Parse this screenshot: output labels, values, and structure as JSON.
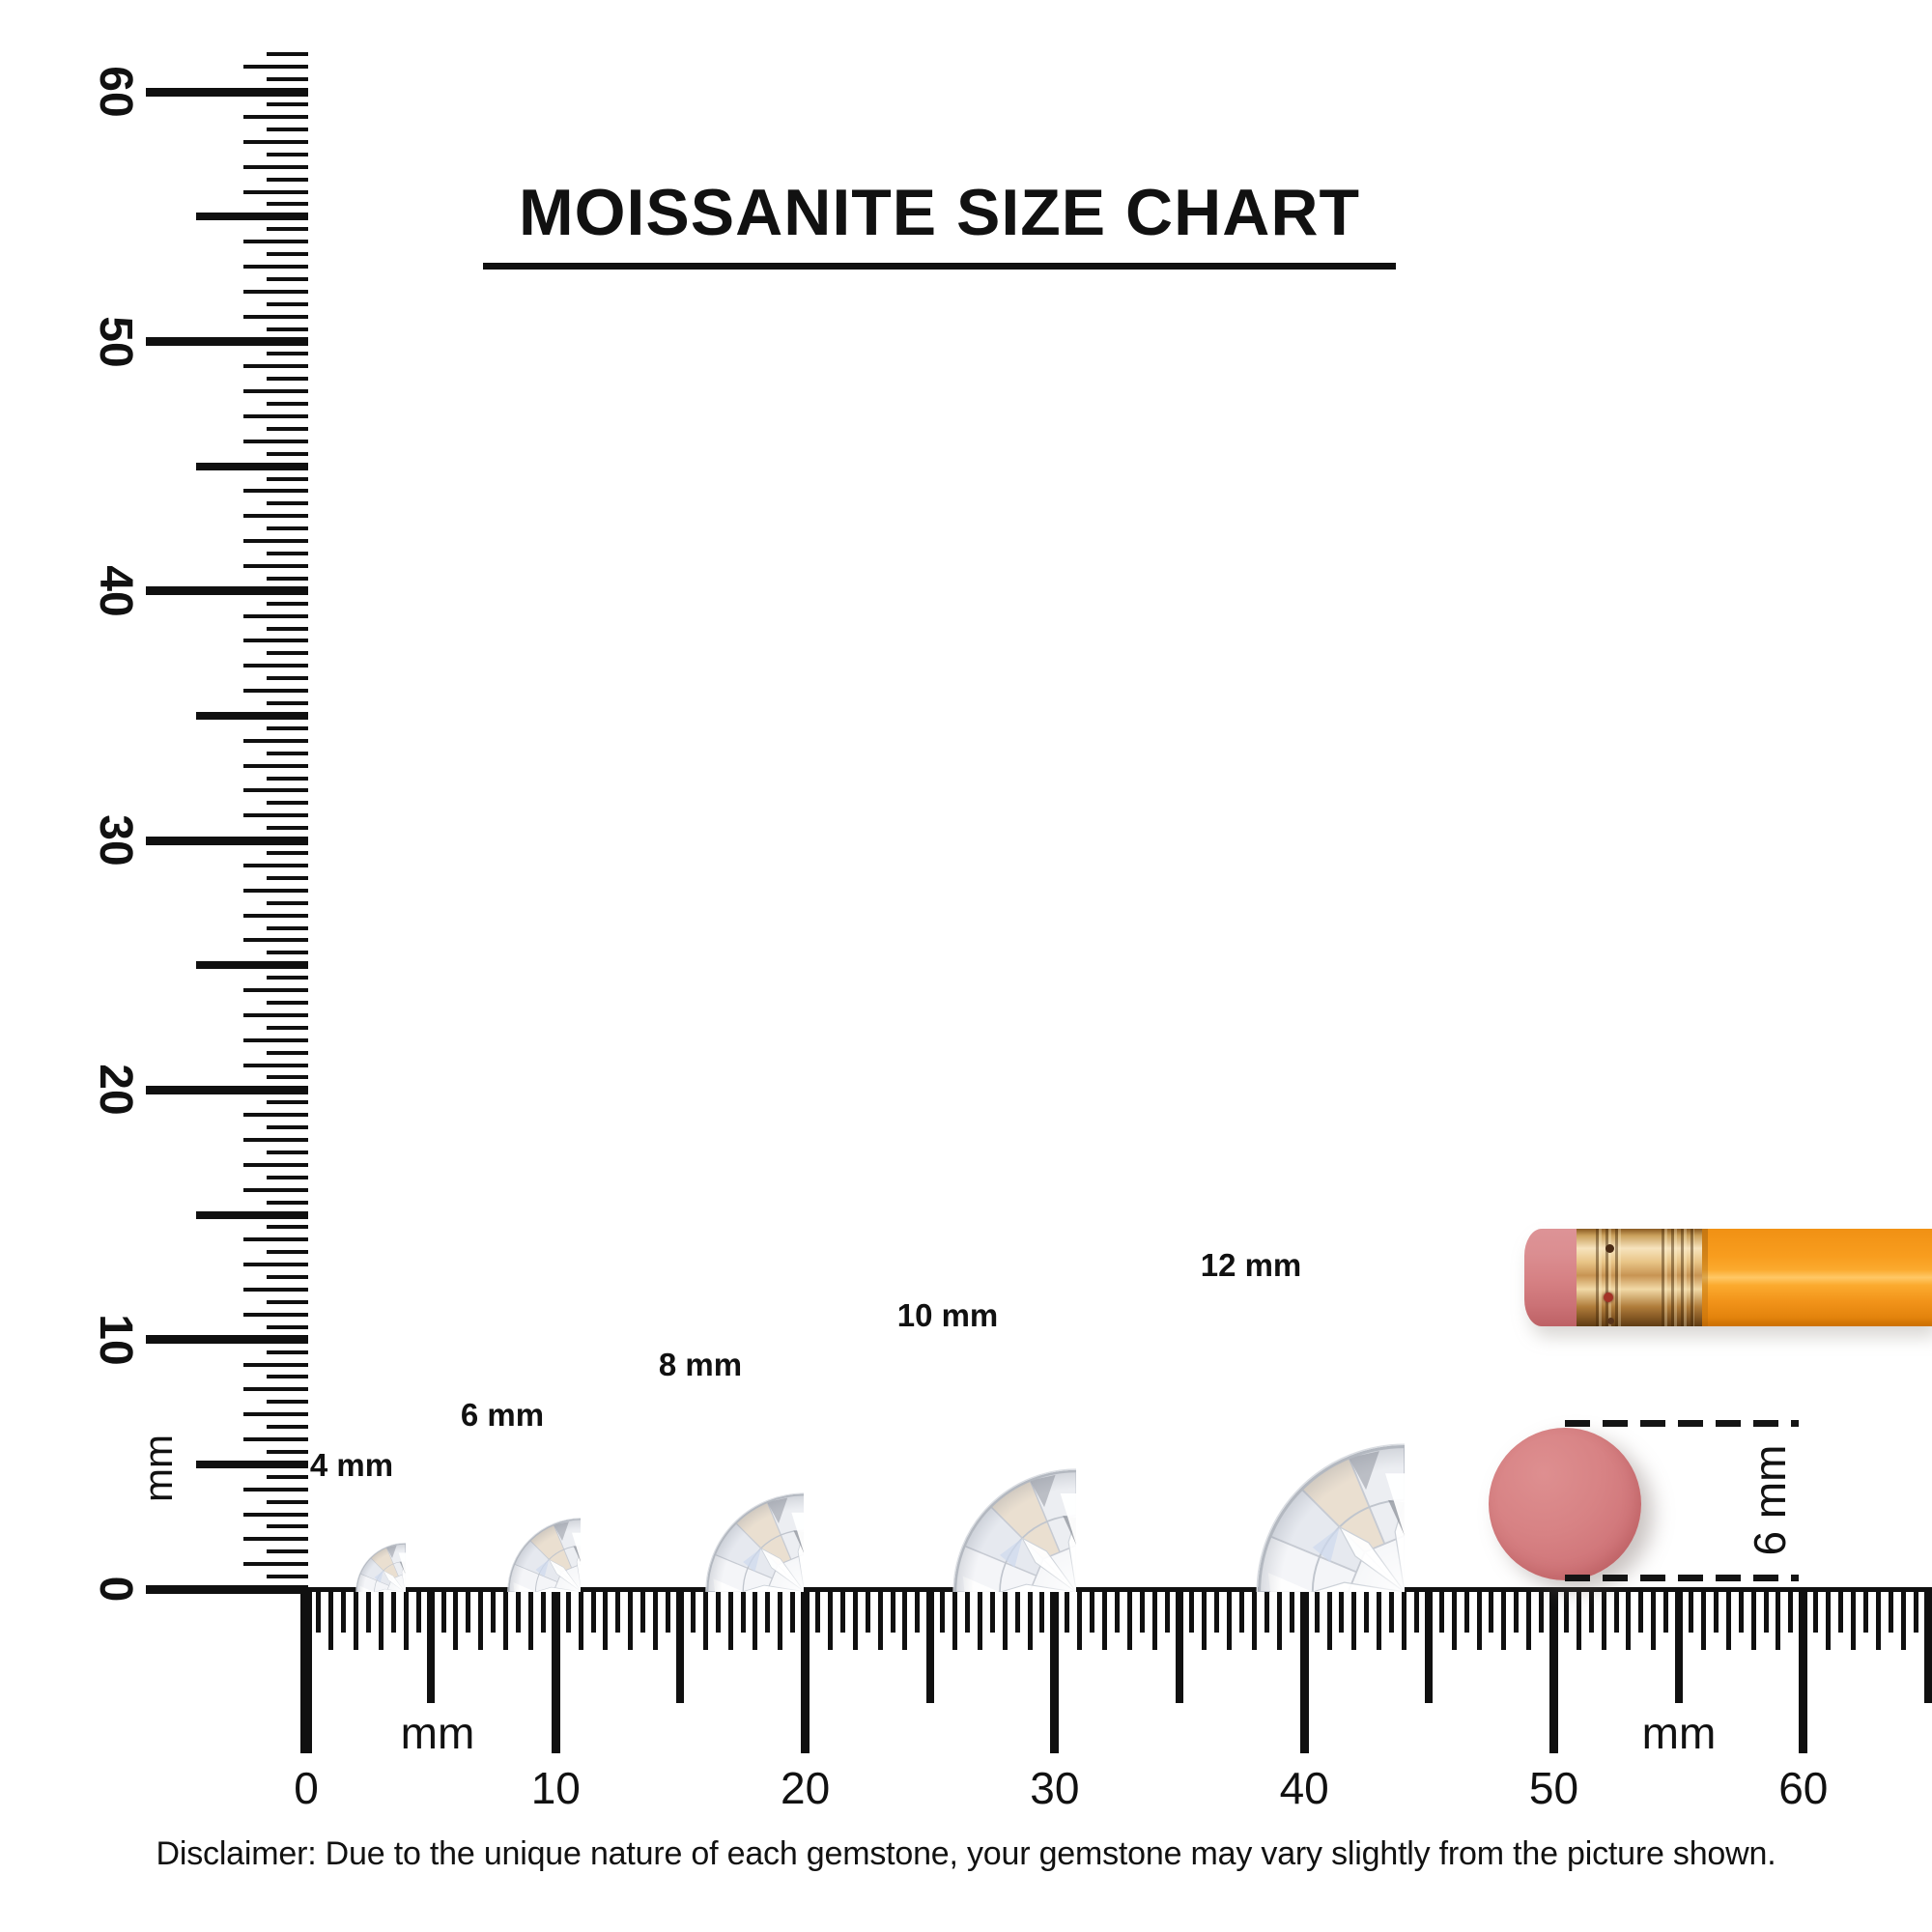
{
  "title": {
    "text": "MOISSANITE SIZE CHART"
  },
  "vertical_ruler": {
    "unit": "mm",
    "tick_labels": [
      "60",
      "50",
      "40",
      "30",
      "20",
      "10",
      "0"
    ],
    "label_values": [
      60,
      50,
      40,
      30,
      20,
      10,
      0
    ],
    "min": 0,
    "max": 60
  },
  "horizontal_ruler": {
    "unit_left": "mm",
    "unit_right": "mm",
    "tick_labels": [
      "0",
      "10",
      "20",
      "30",
      "40",
      "50",
      "60"
    ],
    "label_values": [
      0,
      10,
      20,
      30,
      40,
      50,
      60
    ],
    "min": 0,
    "max": 60
  },
  "gems": [
    {
      "label": "4 mm",
      "size_mm": 4
    },
    {
      "label": "6 mm",
      "size_mm": 6
    },
    {
      "label": "8 mm",
      "size_mm": 8
    },
    {
      "label": "10 mm",
      "size_mm": 10
    },
    {
      "label": "12 mm",
      "size_mm": 12
    }
  ],
  "eraser_measure": {
    "label": "6 mm",
    "size_mm": 6
  },
  "colors": {
    "ink": "#101010",
    "pencil_body": "#f89d1e",
    "pencil_ferrule": "#d9a258",
    "pencil_eraser": "#d68184",
    "eraser_circle": "#d27a7d"
  },
  "disclaimer": {
    "text": "Disclaimer: Due to the unique nature of each gemstone, your gemstone may vary slightly from the picture shown."
  },
  "chart_data": {
    "type": "table",
    "title": "MOISSANITE SIZE CHART",
    "unit": "mm",
    "ruler_range_mm": [
      0,
      60
    ],
    "categories": [
      "4 mm",
      "6 mm",
      "8 mm",
      "10 mm",
      "12 mm"
    ],
    "values": [
      4,
      6,
      8,
      10,
      12
    ],
    "reference_objects": [
      {
        "name": "pencil eraser (end view)",
        "size_mm": 6
      }
    ]
  }
}
